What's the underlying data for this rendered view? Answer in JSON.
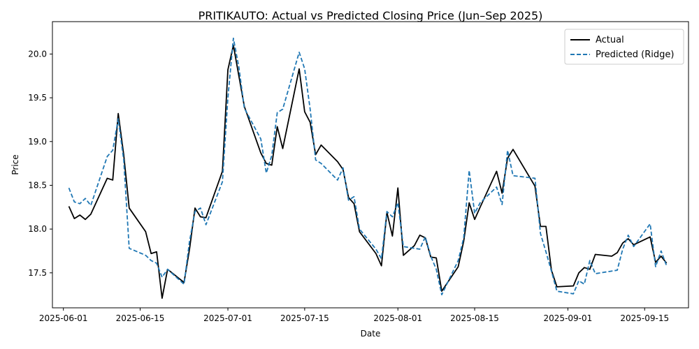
{
  "chart_data": {
    "type": "line",
    "title": "PRITIKAUTO: Actual vs Predicted Closing Price (Jun–Sep 2025)",
    "xlabel": "Date",
    "ylabel": "Price",
    "xlim": [
      "2025-05-30",
      "2025-09-23"
    ],
    "ylim": [
      17.1,
      20.37
    ],
    "x_ticks": [
      "2025-06-01",
      "2025-06-15",
      "2025-07-01",
      "2025-07-15",
      "2025-08-01",
      "2025-08-15",
      "2025-09-01",
      "2025-09-15"
    ],
    "y_ticks": [
      "17.5",
      "18.0",
      "18.5",
      "19.0",
      "19.5",
      "20.0"
    ],
    "grid": false,
    "legend_position": "top-right",
    "series": [
      {
        "name": "Actual",
        "color": "#000000",
        "style": "solid",
        "points": [
          [
            "2025-06-02",
            18.26
          ],
          [
            "2025-06-03",
            18.12
          ],
          [
            "2025-06-04",
            18.16
          ],
          [
            "2025-06-05",
            18.11
          ],
          [
            "2025-06-06",
            18.17
          ],
          [
            "2025-06-09",
            18.58
          ],
          [
            "2025-06-10",
            18.56
          ],
          [
            "2025-06-11",
            19.32
          ],
          [
            "2025-06-12",
            18.85
          ],
          [
            "2025-06-13",
            18.24
          ],
          [
            "2025-06-16",
            17.97
          ],
          [
            "2025-06-17",
            17.72
          ],
          [
            "2025-06-18",
            17.74
          ],
          [
            "2025-06-19",
            17.21
          ],
          [
            "2025-06-20",
            17.54
          ],
          [
            "2025-06-23",
            17.39
          ],
          [
            "2025-06-24",
            17.77
          ],
          [
            "2025-06-25",
            18.24
          ],
          [
            "2025-06-26",
            18.14
          ],
          [
            "2025-06-27",
            18.13
          ],
          [
            "2025-06-30",
            18.66
          ],
          [
            "2025-07-01",
            19.82
          ],
          [
            "2025-07-02",
            20.1
          ],
          [
            "2025-07-03",
            19.75
          ],
          [
            "2025-07-04",
            19.4
          ],
          [
            "2025-07-07",
            18.87
          ],
          [
            "2025-07-08",
            18.75
          ],
          [
            "2025-07-09",
            18.73
          ],
          [
            "2025-07-10",
            19.17
          ],
          [
            "2025-07-11",
            18.92
          ],
          [
            "2025-07-14",
            19.83
          ],
          [
            "2025-07-15",
            19.34
          ],
          [
            "2025-07-16",
            19.22
          ],
          [
            "2025-07-17",
            18.85
          ],
          [
            "2025-07-18",
            18.96
          ],
          [
            "2025-07-21",
            18.77
          ],
          [
            "2025-07-22",
            18.68
          ],
          [
            "2025-07-23",
            18.36
          ],
          [
            "2025-07-24",
            18.29
          ],
          [
            "2025-07-25",
            17.97
          ],
          [
            "2025-07-28",
            17.72
          ],
          [
            "2025-07-29",
            17.58
          ],
          [
            "2025-07-30",
            18.19
          ],
          [
            "2025-07-31",
            17.92
          ],
          [
            "2025-08-01",
            18.47
          ],
          [
            "2025-08-02",
            17.7
          ],
          [
            "2025-08-04",
            17.81
          ],
          [
            "2025-08-05",
            17.93
          ],
          [
            "2025-08-06",
            17.9
          ],
          [
            "2025-08-07",
            17.68
          ],
          [
            "2025-08-08",
            17.67
          ],
          [
            "2025-08-09",
            17.29
          ],
          [
            "2025-08-12",
            17.57
          ],
          [
            "2025-08-13",
            17.86
          ],
          [
            "2025-08-14",
            18.3
          ],
          [
            "2025-08-15",
            18.11
          ],
          [
            "2025-08-16",
            18.25
          ],
          [
            "2025-08-19",
            18.66
          ],
          [
            "2025-08-20",
            18.41
          ],
          [
            "2025-08-21",
            18.81
          ],
          [
            "2025-08-22",
            18.91
          ],
          [
            "2025-08-26",
            18.49
          ],
          [
            "2025-08-27",
            18.03
          ],
          [
            "2025-08-28",
            18.03
          ],
          [
            "2025-08-29",
            17.53
          ],
          [
            "2025-08-30",
            17.34
          ],
          [
            "2025-09-02",
            17.35
          ],
          [
            "2025-09-03",
            17.5
          ],
          [
            "2025-09-04",
            17.56
          ],
          [
            "2025-09-05",
            17.54
          ],
          [
            "2025-09-06",
            17.71
          ],
          [
            "2025-09-09",
            17.69
          ],
          [
            "2025-09-10",
            17.73
          ],
          [
            "2025-09-11",
            17.84
          ],
          [
            "2025-09-12",
            17.89
          ],
          [
            "2025-09-13",
            17.82
          ],
          [
            "2025-09-16",
            17.91
          ],
          [
            "2025-09-17",
            17.62
          ],
          [
            "2025-09-18",
            17.69
          ],
          [
            "2025-09-19",
            17.61
          ]
        ]
      },
      {
        "name": "Predicted (Ridge)",
        "color": "#1f77b4",
        "style": "dashed",
        "points": [
          [
            "2025-06-02",
            18.47
          ],
          [
            "2025-06-03",
            18.31
          ],
          [
            "2025-06-04",
            18.29
          ],
          [
            "2025-06-05",
            18.35
          ],
          [
            "2025-06-06",
            18.27
          ],
          [
            "2025-06-09",
            18.83
          ],
          [
            "2025-06-10",
            18.9
          ],
          [
            "2025-06-11",
            19.26
          ],
          [
            "2025-06-12",
            18.79
          ],
          [
            "2025-06-13",
            17.78
          ],
          [
            "2025-06-16",
            17.7
          ],
          [
            "2025-06-17",
            17.64
          ],
          [
            "2025-06-18",
            17.61
          ],
          [
            "2025-06-19",
            17.45
          ],
          [
            "2025-06-20",
            17.54
          ],
          [
            "2025-06-23",
            17.37
          ],
          [
            "2025-06-24",
            17.86
          ],
          [
            "2025-06-25",
            18.2
          ],
          [
            "2025-06-26",
            18.24
          ],
          [
            "2025-06-27",
            18.05
          ],
          [
            "2025-06-30",
            18.54
          ],
          [
            "2025-07-01",
            19.5
          ],
          [
            "2025-07-02",
            20.18
          ],
          [
            "2025-07-03",
            19.85
          ],
          [
            "2025-07-04",
            19.38
          ],
          [
            "2025-07-07",
            19.03
          ],
          [
            "2025-07-08",
            18.64
          ],
          [
            "2025-07-09",
            18.84
          ],
          [
            "2025-07-10",
            19.33
          ],
          [
            "2025-07-11",
            19.37
          ],
          [
            "2025-07-14",
            20.02
          ],
          [
            "2025-07-15",
            19.83
          ],
          [
            "2025-07-16",
            19.37
          ],
          [
            "2025-07-17",
            18.79
          ],
          [
            "2025-07-18",
            18.75
          ],
          [
            "2025-07-21",
            18.56
          ],
          [
            "2025-07-22",
            18.7
          ],
          [
            "2025-07-23",
            18.33
          ],
          [
            "2025-07-24",
            18.37
          ],
          [
            "2025-07-25",
            18.0
          ],
          [
            "2025-07-28",
            17.77
          ],
          [
            "2025-07-29",
            17.66
          ],
          [
            "2025-07-30",
            18.2
          ],
          [
            "2025-07-31",
            18.14
          ],
          [
            "2025-08-01",
            18.3
          ],
          [
            "2025-08-02",
            17.8
          ],
          [
            "2025-08-04",
            17.78
          ],
          [
            "2025-08-05",
            17.77
          ],
          [
            "2025-08-06",
            17.91
          ],
          [
            "2025-08-07",
            17.69
          ],
          [
            "2025-08-08",
            17.54
          ],
          [
            "2025-08-09",
            17.25
          ],
          [
            "2025-08-12",
            17.64
          ],
          [
            "2025-08-13",
            17.9
          ],
          [
            "2025-08-14",
            18.67
          ],
          [
            "2025-08-15",
            18.18
          ],
          [
            "2025-08-16",
            18.3
          ],
          [
            "2025-08-19",
            18.48
          ],
          [
            "2025-08-20",
            18.28
          ],
          [
            "2025-08-21",
            18.9
          ],
          [
            "2025-08-22",
            18.61
          ],
          [
            "2025-08-26",
            18.58
          ],
          [
            "2025-08-27",
            17.95
          ],
          [
            "2025-08-28",
            17.74
          ],
          [
            "2025-08-29",
            17.52
          ],
          [
            "2025-08-30",
            17.29
          ],
          [
            "2025-09-02",
            17.26
          ],
          [
            "2025-09-03",
            17.41
          ],
          [
            "2025-09-04",
            17.37
          ],
          [
            "2025-09-05",
            17.64
          ],
          [
            "2025-09-06",
            17.49
          ],
          [
            "2025-09-09",
            17.52
          ],
          [
            "2025-09-10",
            17.53
          ],
          [
            "2025-09-11",
            17.77
          ],
          [
            "2025-09-12",
            17.93
          ],
          [
            "2025-09-13",
            17.8
          ],
          [
            "2025-09-16",
            18.06
          ],
          [
            "2025-09-17",
            17.57
          ],
          [
            "2025-09-18",
            17.75
          ],
          [
            "2025-09-19",
            17.58
          ]
        ]
      }
    ]
  }
}
